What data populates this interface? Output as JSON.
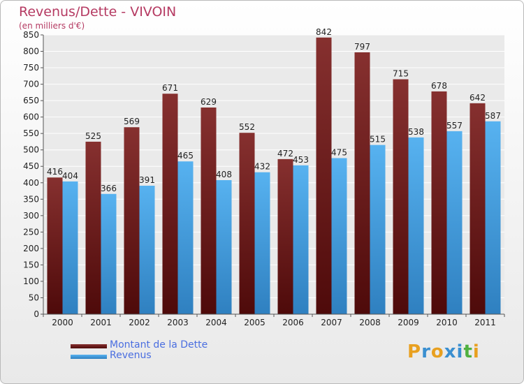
{
  "chart_data": {
    "type": "bar",
    "title": "Revenus/Dette - VIVOIN",
    "subtitle": "(en milliers d'€)",
    "categories": [
      "2000",
      "2001",
      "2002",
      "2003",
      "2004",
      "2005",
      "2006",
      "2007",
      "2008",
      "2009",
      "2010",
      "2011"
    ],
    "series": [
      {
        "name": "Montant de la Dette",
        "color": "#7a1f22",
        "values": [
          416,
          525,
          569,
          671,
          629,
          552,
          472,
          842,
          797,
          715,
          678,
          642
        ]
      },
      {
        "name": "Revenus",
        "color": "#4da6e8",
        "values": [
          404,
          366,
          391,
          465,
          408,
          432,
          453,
          475,
          515,
          538,
          557,
          587
        ]
      }
    ],
    "ylim": [
      0,
      850
    ],
    "yticks": [
      0,
      50,
      100,
      150,
      200,
      250,
      300,
      350,
      400,
      450,
      500,
      550,
      600,
      650,
      700,
      750,
      800,
      850
    ],
    "grid": true,
    "legend_position": "bottom-left"
  },
  "branding": {
    "logo_letters": [
      "P",
      "r",
      "o",
      "x",
      "i",
      "t",
      "i"
    ],
    "logo_colors": [
      "#e8a020",
      "#3a8fd0",
      "#e8a020",
      "#3a8fd0",
      "#3a8fd0",
      "#50b040",
      "#e8a020"
    ]
  }
}
